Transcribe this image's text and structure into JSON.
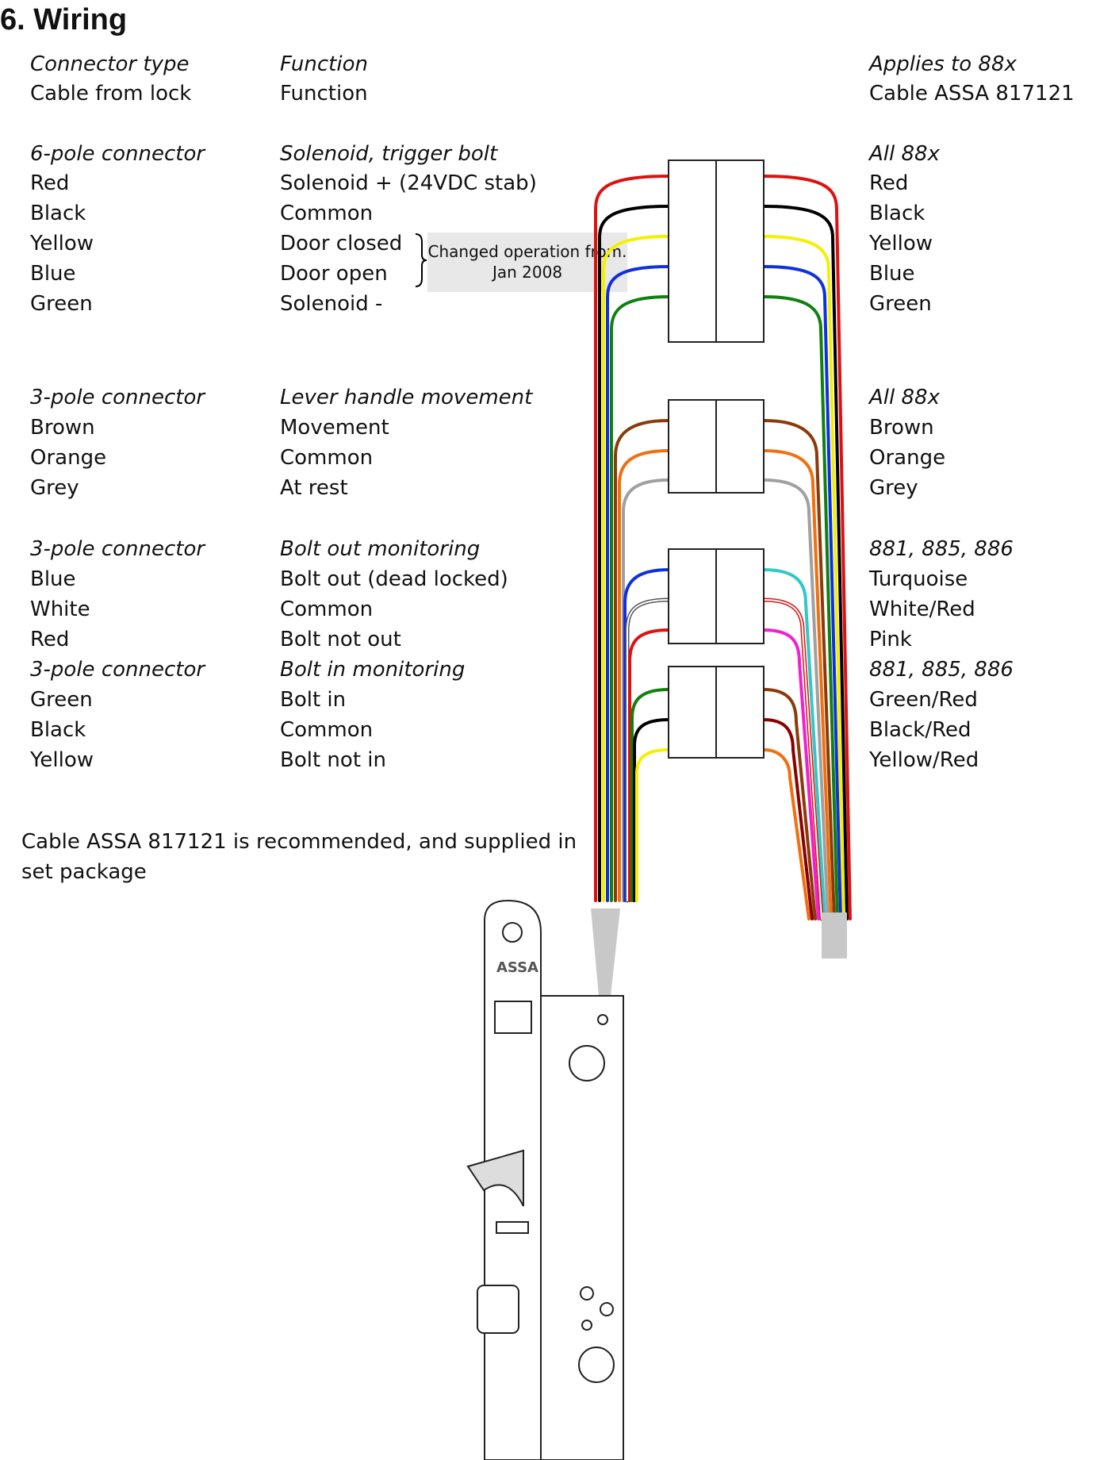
{
  "title": "6. Wiring",
  "headers": {
    "left": [
      "Connector type",
      "Cable from lock"
    ],
    "middle": [
      "Function",
      "Function"
    ],
    "right": [
      "Applies to 88x",
      "Cable ASSA 817121"
    ]
  },
  "groups": [
    {
      "connector": "6-pole connector",
      "function": "Solenoid, trigger bolt",
      "applies": "All 88x",
      "rows": [
        {
          "lock": "Red",
          "func": "Solenoid + (24VDC stab)",
          "cable": "Red"
        },
        {
          "lock": "Black",
          "func": "Common",
          "cable": "Black"
        },
        {
          "lock": "Yellow",
          "func": "Door closed",
          "cable": "Yellow"
        },
        {
          "lock": "Blue",
          "func": "Door open",
          "cable": "Blue"
        },
        {
          "lock": "Green",
          "func": "Solenoid -",
          "cable": "Green"
        }
      ]
    },
    {
      "connector": "3-pole connector",
      "function": "Lever handle movement",
      "applies": "All 88x",
      "rows": [
        {
          "lock": "Brown",
          "func": "Movement",
          "cable": "Brown"
        },
        {
          "lock": "Orange",
          "func": "Common",
          "cable": "Orange"
        },
        {
          "lock": "Grey",
          "func": "At rest",
          "cable": "Grey"
        }
      ]
    },
    {
      "connector": "3-pole connector",
      "function": "Bolt out monitoring",
      "applies": "881, 885, 886",
      "rows": [
        {
          "lock": "Blue",
          "func": "Bolt out (dead locked)",
          "cable": "Turquoise"
        },
        {
          "lock": "White",
          "func": "Common",
          "cable": "White/Red"
        },
        {
          "lock": "Red",
          "func": "Bolt not out",
          "cable": "Pink"
        }
      ]
    },
    {
      "connector": "3-pole connector",
      "function": "Bolt in monitoring",
      "applies": "881, 885, 886",
      "rows": [
        {
          "lock": "Green",
          "func": "Bolt in",
          "cable": "Green/Red"
        },
        {
          "lock": "Black",
          "func": "Common",
          "cable": "Black/Red"
        },
        {
          "lock": "Yellow",
          "func": "Bolt not in",
          "cable": "Yellow/Red"
        }
      ]
    }
  ],
  "callout": "Changed operation from. Jan 2008",
  "note": "Cable ASSA 817121 is recommended, and supplied in set package",
  "lock_brand": "ASSA",
  "wire_colors": {
    "red": "#e01010",
    "black": "#000000",
    "yellow": "#f5f000",
    "blue": "#1030e0",
    "green": "#108010",
    "brown": "#8b3a0a",
    "orange": "#f07010",
    "grey": "#a0a0a0",
    "turquoise": "#30c8c8",
    "pink": "#f020d0",
    "white": "#ffffff"
  }
}
